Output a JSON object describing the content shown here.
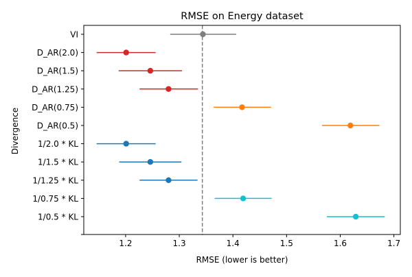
{
  "chart_data": {
    "type": "scatter",
    "title": "RMSE on Energy dataset",
    "xlabel": "RMSE (lower is better)",
    "ylabel": "Divergence",
    "xlim": [
      1.122,
      1.712
    ],
    "xticks": [
      1.2,
      1.3,
      1.4,
      1.5,
      1.6,
      1.7
    ],
    "grid": false,
    "reference_line": {
      "x": 1.343,
      "style": "dashed",
      "color": "#808080"
    },
    "categories": [
      "VI",
      "D_AR(2.0)",
      "D_AR(1.5)",
      "D_AR(1.25)",
      "D_AR(0.75)",
      "D_AR(0.5)",
      "1/2.0 * KL",
      "1/1.5 * KL",
      "1/1.25 * KL",
      "1/0.75 * KL",
      "1/0.5 * KL"
    ],
    "points": [
      {
        "label": "VI",
        "x": 1.344,
        "err_low": 1.283,
        "err_high": 1.406,
        "color": "#7f7f7f"
      },
      {
        "label": "D_AR(2.0)",
        "x": 1.201,
        "err_low": 1.146,
        "err_high": 1.256,
        "color": "#d62728"
      },
      {
        "label": "D_AR(1.5)",
        "x": 1.246,
        "err_low": 1.187,
        "err_high": 1.305,
        "color": "#d62728"
      },
      {
        "label": "D_AR(1.25)",
        "x": 1.28,
        "err_low": 1.226,
        "err_high": 1.335,
        "color": "#d62728"
      },
      {
        "label": "D_AR(0.75)",
        "x": 1.417,
        "err_low": 1.364,
        "err_high": 1.471,
        "color": "#ff7f0e"
      },
      {
        "label": "D_AR(0.5)",
        "x": 1.619,
        "err_low": 1.566,
        "err_high": 1.673,
        "color": "#ff7f0e"
      },
      {
        "label": "1/2.0 * KL",
        "x": 1.201,
        "err_low": 1.146,
        "err_high": 1.256,
        "color": "#1f77b4"
      },
      {
        "label": "1/1.5 * KL",
        "x": 1.246,
        "err_low": 1.188,
        "err_high": 1.304,
        "color": "#1f77b4"
      },
      {
        "label": "1/1.25 * KL",
        "x": 1.28,
        "err_low": 1.226,
        "err_high": 1.334,
        "color": "#1f77b4"
      },
      {
        "label": "1/0.75 * KL",
        "x": 1.419,
        "err_low": 1.366,
        "err_high": 1.472,
        "color": "#17becf"
      },
      {
        "label": "1/0.5 * KL",
        "x": 1.629,
        "err_low": 1.575,
        "err_high": 1.683,
        "color": "#17becf"
      }
    ]
  }
}
